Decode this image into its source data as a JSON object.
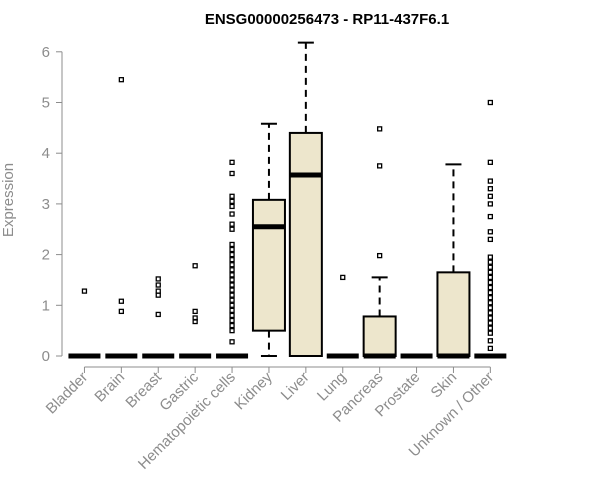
{
  "chart_data": {
    "type": "box",
    "title": "ENSG00000256473 - RP11-437F6.1",
    "xlabel": "",
    "ylabel": "Expression",
    "ylim": [
      0,
      6.2
    ],
    "yticks": [
      "0",
      "1",
      "2",
      "3",
      "4",
      "5",
      "6"
    ],
    "grid": false,
    "colors": {
      "box_fill": "#ede6cc",
      "stroke": "#000000",
      "axis": "#8c8c8c",
      "title": "#000000"
    },
    "categories": [
      "Bladder",
      "Brain",
      "Breast",
      "Gastric",
      "Hematopoietic cells",
      "Kidney",
      "Liver",
      "Lung",
      "Pancreas",
      "Prostate",
      "Skin",
      "Unknown / Other"
    ],
    "boxes": [
      {
        "category": "Bladder",
        "min": 0,
        "q1": 0,
        "median": 0,
        "q3": 0,
        "max": 0,
        "outliers": [
          1.28
        ]
      },
      {
        "category": "Brain",
        "min": 0,
        "q1": 0,
        "median": 0,
        "q3": 0,
        "max": 0,
        "outliers": [
          0.88,
          1.08,
          5.45
        ]
      },
      {
        "category": "Breast",
        "min": 0,
        "q1": 0,
        "median": 0,
        "q3": 0,
        "max": 0,
        "outliers": [
          0.82,
          1.2,
          1.28,
          1.4,
          1.52
        ]
      },
      {
        "category": "Gastric",
        "min": 0,
        "q1": 0,
        "median": 0,
        "q3": 0,
        "max": 0,
        "outliers": [
          0.68,
          0.75,
          0.88,
          1.78
        ]
      },
      {
        "category": "Hematopoietic cells",
        "min": 0,
        "q1": 0,
        "median": 0,
        "q3": 0,
        "max": 0,
        "outliers": [
          0.28,
          0.5,
          0.6,
          0.7,
          0.8,
          0.9,
          1.0,
          1.1,
          1.2,
          1.3,
          1.4,
          1.5,
          1.6,
          1.7,
          1.8,
          1.9,
          2.0,
          2.1,
          2.2,
          2.5,
          2.6,
          2.8,
          2.95,
          3.05,
          3.15,
          3.6,
          3.82
        ]
      },
      {
        "category": "Kidney",
        "min": 0,
        "q1": 0.5,
        "median": 2.55,
        "q3": 3.08,
        "max": 4.58,
        "outliers": []
      },
      {
        "category": "Liver",
        "min": 0,
        "q1": 0,
        "median": 3.57,
        "q3": 4.4,
        "max": 6.18,
        "outliers": []
      },
      {
        "category": "Lung",
        "min": 0,
        "q1": 0,
        "median": 0,
        "q3": 0,
        "max": 0,
        "outliers": [
          1.55
        ]
      },
      {
        "category": "Pancreas",
        "min": 0,
        "q1": 0,
        "median": 0,
        "q3": 0.78,
        "max": 1.55,
        "outliers": [
          1.98,
          3.75,
          4.48
        ]
      },
      {
        "category": "Prostate",
        "min": 0,
        "q1": 0,
        "median": 0,
        "q3": 0,
        "max": 0,
        "outliers": []
      },
      {
        "category": "Skin",
        "min": 0,
        "q1": 0,
        "median": 0,
        "q3": 1.65,
        "max": 3.78,
        "outliers": []
      },
      {
        "category": "Unknown / Other",
        "min": 0,
        "q1": 0,
        "median": 0,
        "q3": 0,
        "max": 0,
        "outliers": [
          0.15,
          0.3,
          0.45,
          0.55,
          0.65,
          0.75,
          0.85,
          0.95,
          1.05,
          1.15,
          1.25,
          1.35,
          1.45,
          1.55,
          1.65,
          1.75,
          1.85,
          1.95,
          2.3,
          2.45,
          2.75,
          3.0,
          3.15,
          3.3,
          3.45,
          3.82,
          5.0
        ]
      }
    ]
  }
}
